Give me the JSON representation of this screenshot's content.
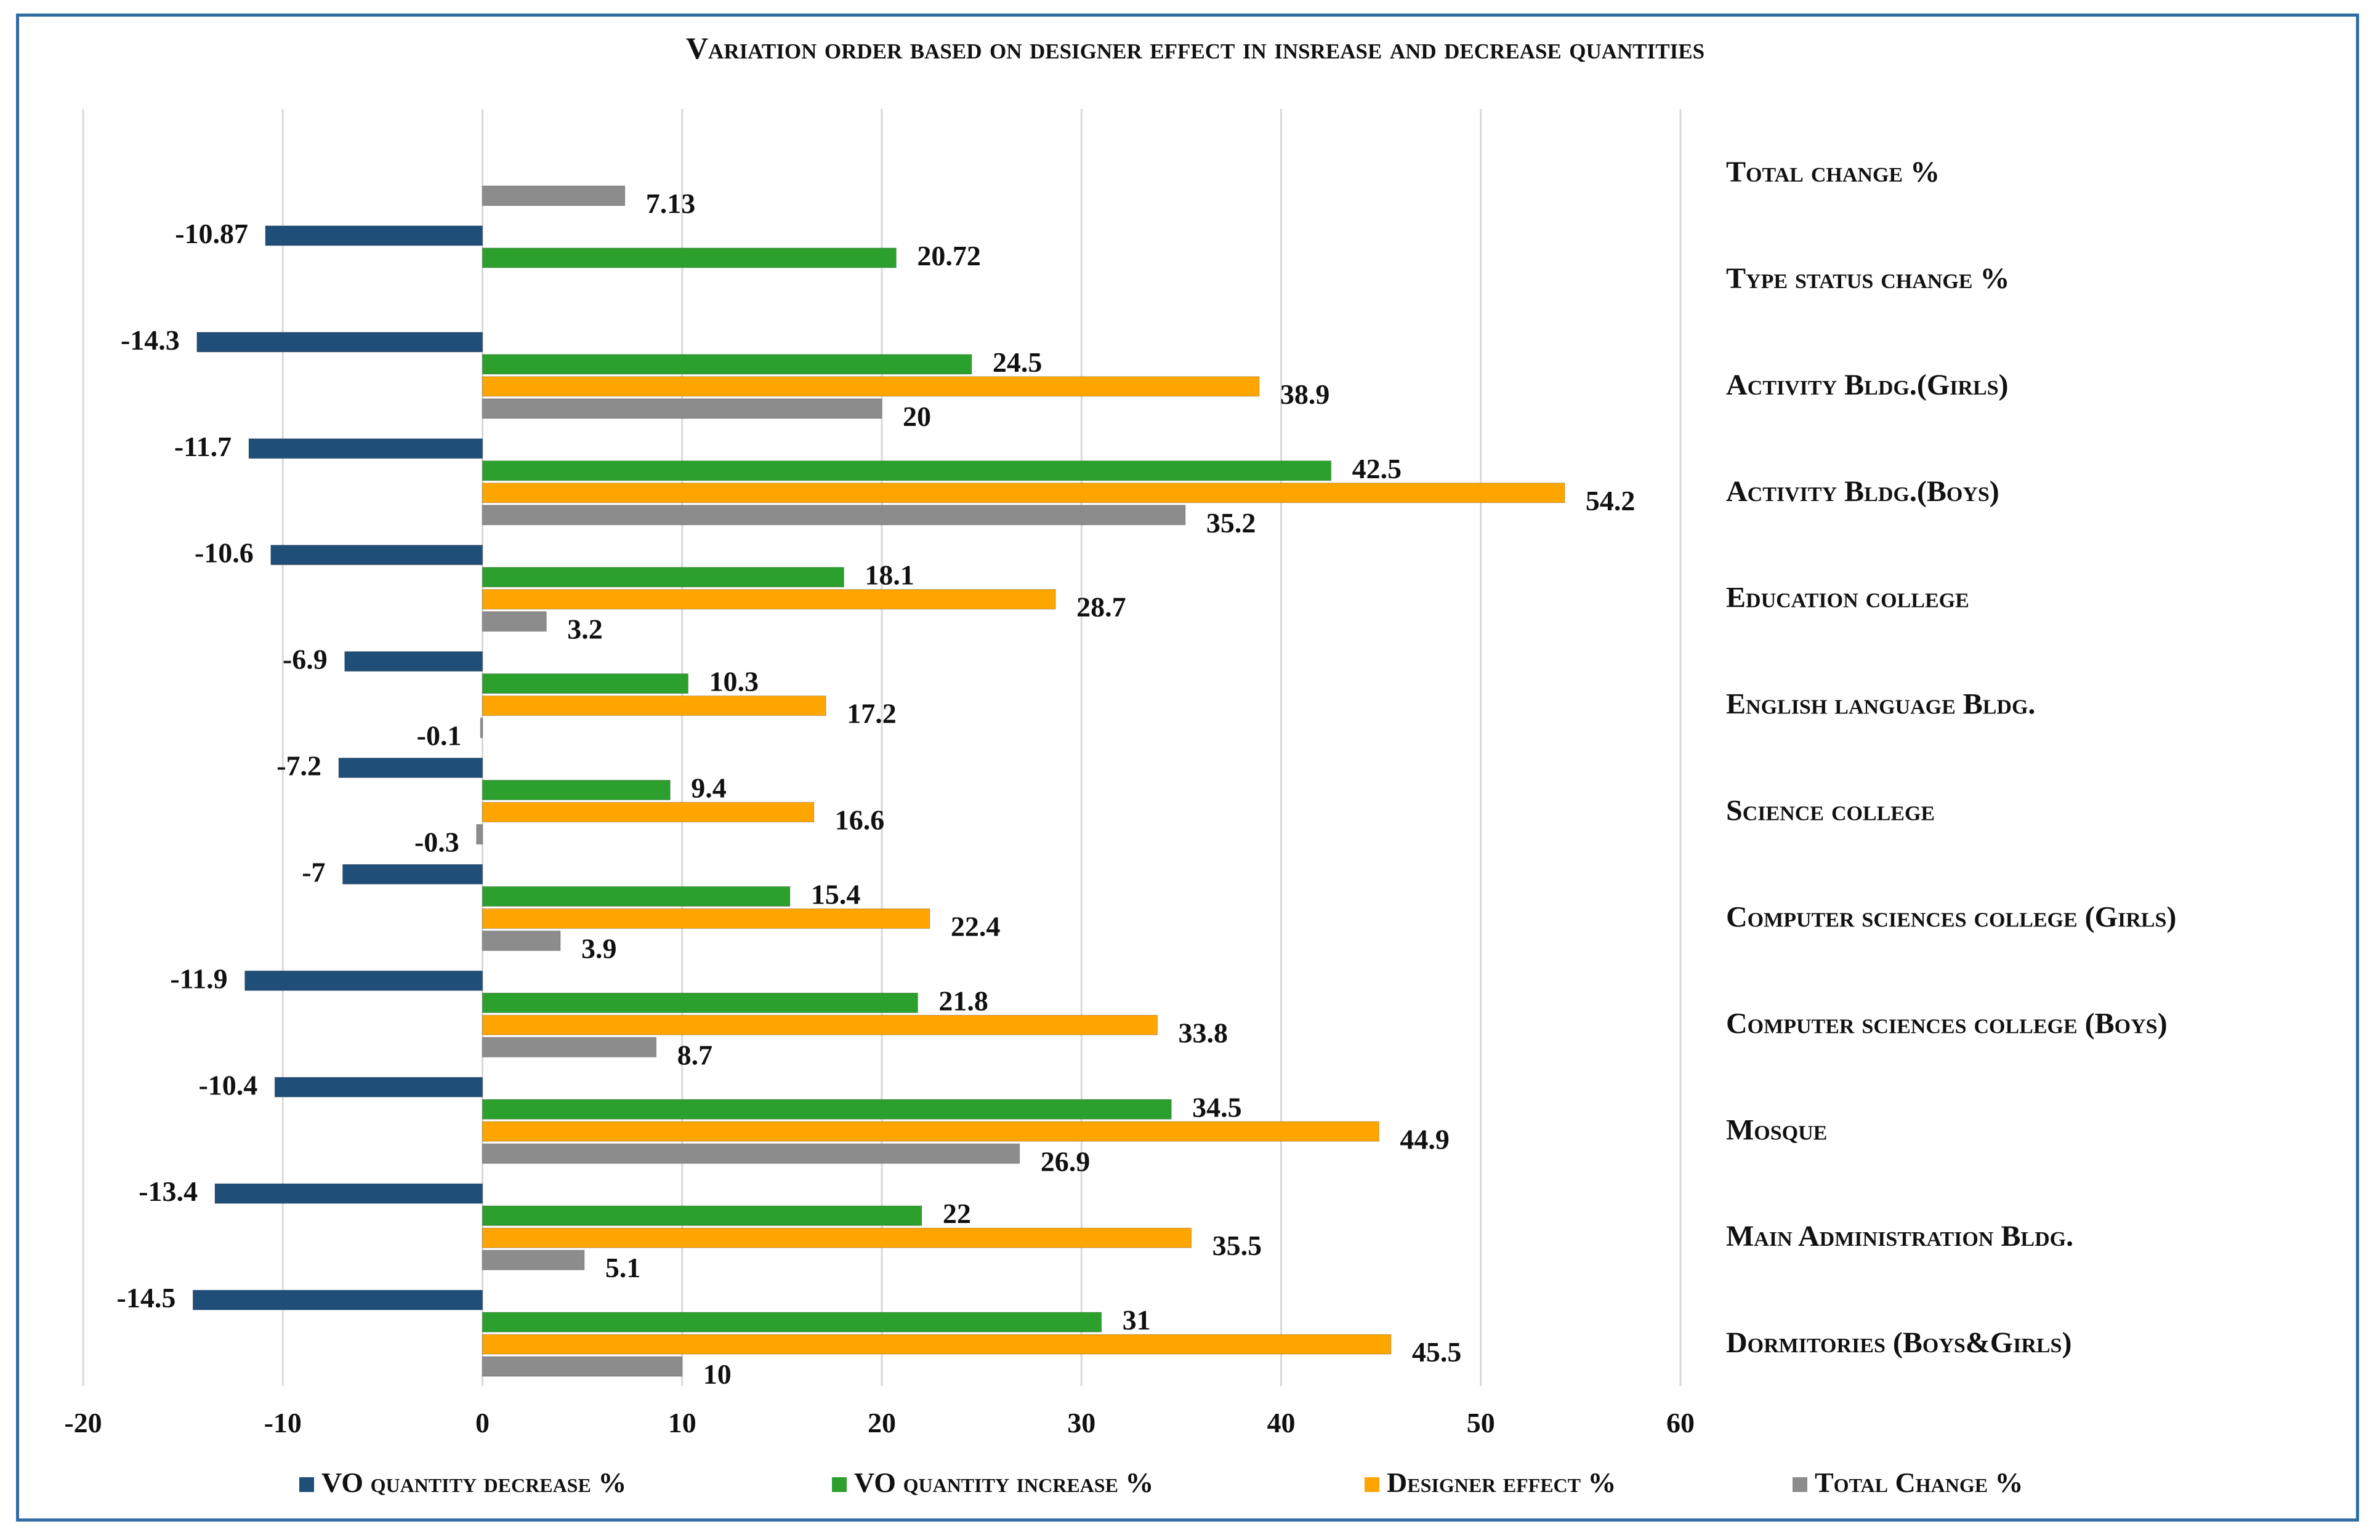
{
  "chart_data": {
    "type": "bar",
    "orientation": "horizontal",
    "title": "Variation order based on designer effect in insrease and decrease quantities",
    "xlim": [
      -20,
      60
    ],
    "xticks": [
      -20,
      -10,
      0,
      10,
      20,
      30,
      40,
      50,
      60
    ],
    "grid": true,
    "legend_position": "bottom",
    "categories": [
      "Total change %",
      "Type status change %",
      "Activity Bldg.(Girls)",
      "Activity Bldg.(Boys)",
      "Education college",
      "English language Bldg.",
      "Science college",
      "Computer sciences college (Girls)",
      "Computer sciences college (Boys)",
      "Mosque",
      "Main Administration Bldg.",
      "Dormitories (Boys&Girls)"
    ],
    "series": [
      {
        "name": "VO quantity decrease %",
        "color": "#1f4e79",
        "values": [
          null,
          -10.87,
          -14.3,
          -11.7,
          -10.6,
          -6.9,
          -7.2,
          -7,
          -11.9,
          -10.4,
          -13.4,
          -14.5
        ],
        "labels": [
          null,
          "-10.87",
          "-14.3",
          "-11.7",
          "-10.6",
          "-6.9",
          "-7.2",
          "-7",
          "-11.9",
          "-10.4",
          "-13.4",
          "-14.5"
        ]
      },
      {
        "name": "VO quantity increase %",
        "color": "#2ca02c",
        "values": [
          null,
          20.72,
          24.5,
          42.5,
          18.1,
          10.3,
          9.4,
          15.4,
          21.8,
          34.5,
          22,
          31
        ],
        "labels": [
          null,
          "20.72",
          "24.5",
          "42.5",
          "18.1",
          "10.3",
          "9.4",
          "15.4",
          "21.8",
          "34.5",
          "22",
          "31"
        ]
      },
      {
        "name": "Designer effect %",
        "color": "#ffa500",
        "values": [
          null,
          null,
          38.9,
          54.2,
          28.7,
          17.2,
          16.6,
          22.4,
          33.8,
          44.9,
          35.5,
          45.5
        ],
        "labels": [
          null,
          null,
          "38.9",
          "54.2",
          "28.7",
          "17.2",
          "16.6",
          "22.4",
          "33.8",
          "44.9",
          "35.5",
          "45.5"
        ]
      },
      {
        "name": "Total Change %",
        "color": "#8c8c8c",
        "values": [
          7.13,
          null,
          20,
          35.2,
          3.2,
          -0.1,
          -0.3,
          3.9,
          8.7,
          26.9,
          5.1,
          10
        ],
        "labels": [
          "7.13",
          null,
          "20",
          "35.2",
          "3.2",
          "-0.1",
          "-0.3",
          "3.9",
          "8.7",
          "26.9",
          "5.1",
          "10"
        ]
      }
    ]
  }
}
